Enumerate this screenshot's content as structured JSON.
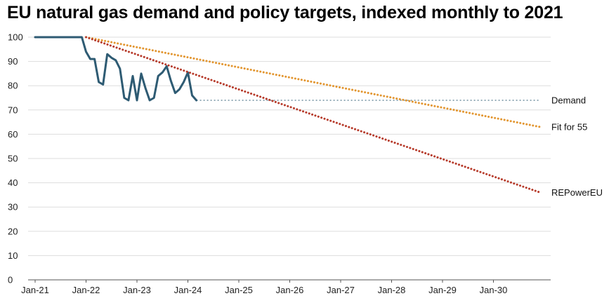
{
  "chart_data": {
    "type": "line",
    "title": "EU natural gas demand and policy targets, indexed monthly to 2021",
    "xlabel": "",
    "ylabel": "",
    "ylim": [
      0,
      100
    ],
    "yticks": [
      0,
      10,
      20,
      30,
      40,
      50,
      60,
      70,
      80,
      90,
      100
    ],
    "xticks": [
      "Jan-21",
      "Jan-22",
      "Jan-23",
      "Jan-24",
      "Jan-25",
      "Jan-26",
      "Jan-27",
      "Jan-28",
      "Jan-29",
      "Jan-30"
    ],
    "grid": true,
    "colors": {
      "demand": "#2e5b73",
      "fit_for_55": "#e2952f",
      "repowereu": "#b63a2a",
      "grid": "#dddddd"
    },
    "series": [
      {
        "name": "Demand",
        "style": "solid",
        "points": [
          [
            "2021-01",
            100
          ],
          [
            "2021-02",
            100
          ],
          [
            "2021-03",
            100
          ],
          [
            "2021-04",
            100
          ],
          [
            "2021-05",
            100
          ],
          [
            "2021-06",
            100
          ],
          [
            "2021-07",
            100
          ],
          [
            "2021-08",
            100
          ],
          [
            "2021-09",
            100
          ],
          [
            "2021-10",
            100
          ],
          [
            "2021-11",
            100
          ],
          [
            "2021-12",
            100
          ],
          [
            "2022-01",
            94
          ],
          [
            "2022-02",
            91
          ],
          [
            "2022-03",
            91
          ],
          [
            "2022-04",
            81.5
          ],
          [
            "2022-05",
            80.5
          ],
          [
            "2022-06",
            93
          ],
          [
            "2022-07",
            91.5
          ],
          [
            "2022-08",
            90.5
          ],
          [
            "2022-09",
            87
          ],
          [
            "2022-10",
            75
          ],
          [
            "2022-11",
            74
          ],
          [
            "2022-12",
            84
          ],
          [
            "2023-01",
            74
          ],
          [
            "2023-02",
            85
          ],
          [
            "2023-03",
            79
          ],
          [
            "2023-04",
            74
          ],
          [
            "2023-05",
            75
          ],
          [
            "2023-06",
            84
          ],
          [
            "2023-07",
            85.5
          ],
          [
            "2023-08",
            88
          ],
          [
            "2023-09",
            82
          ],
          [
            "2023-10",
            77
          ],
          [
            "2023-11",
            78.5
          ],
          [
            "2023-12",
            81.5
          ],
          [
            "2024-01",
            85.5
          ],
          [
            "2024-02",
            76
          ],
          [
            "2024-03",
            74
          ]
        ]
      },
      {
        "name": "Demand",
        "style": "dotted-reference",
        "points": [
          [
            "2024-03",
            74
          ],
          [
            "2030-12",
            74
          ]
        ]
      },
      {
        "name": "Fit for 55",
        "style": "dotted",
        "points": [
          [
            "2022-01",
            100
          ],
          [
            "2030-12",
            63
          ]
        ]
      },
      {
        "name": "REPowerEU",
        "style": "dotted",
        "points": [
          [
            "2022-01",
            100
          ],
          [
            "2030-12",
            36
          ]
        ]
      }
    ]
  }
}
